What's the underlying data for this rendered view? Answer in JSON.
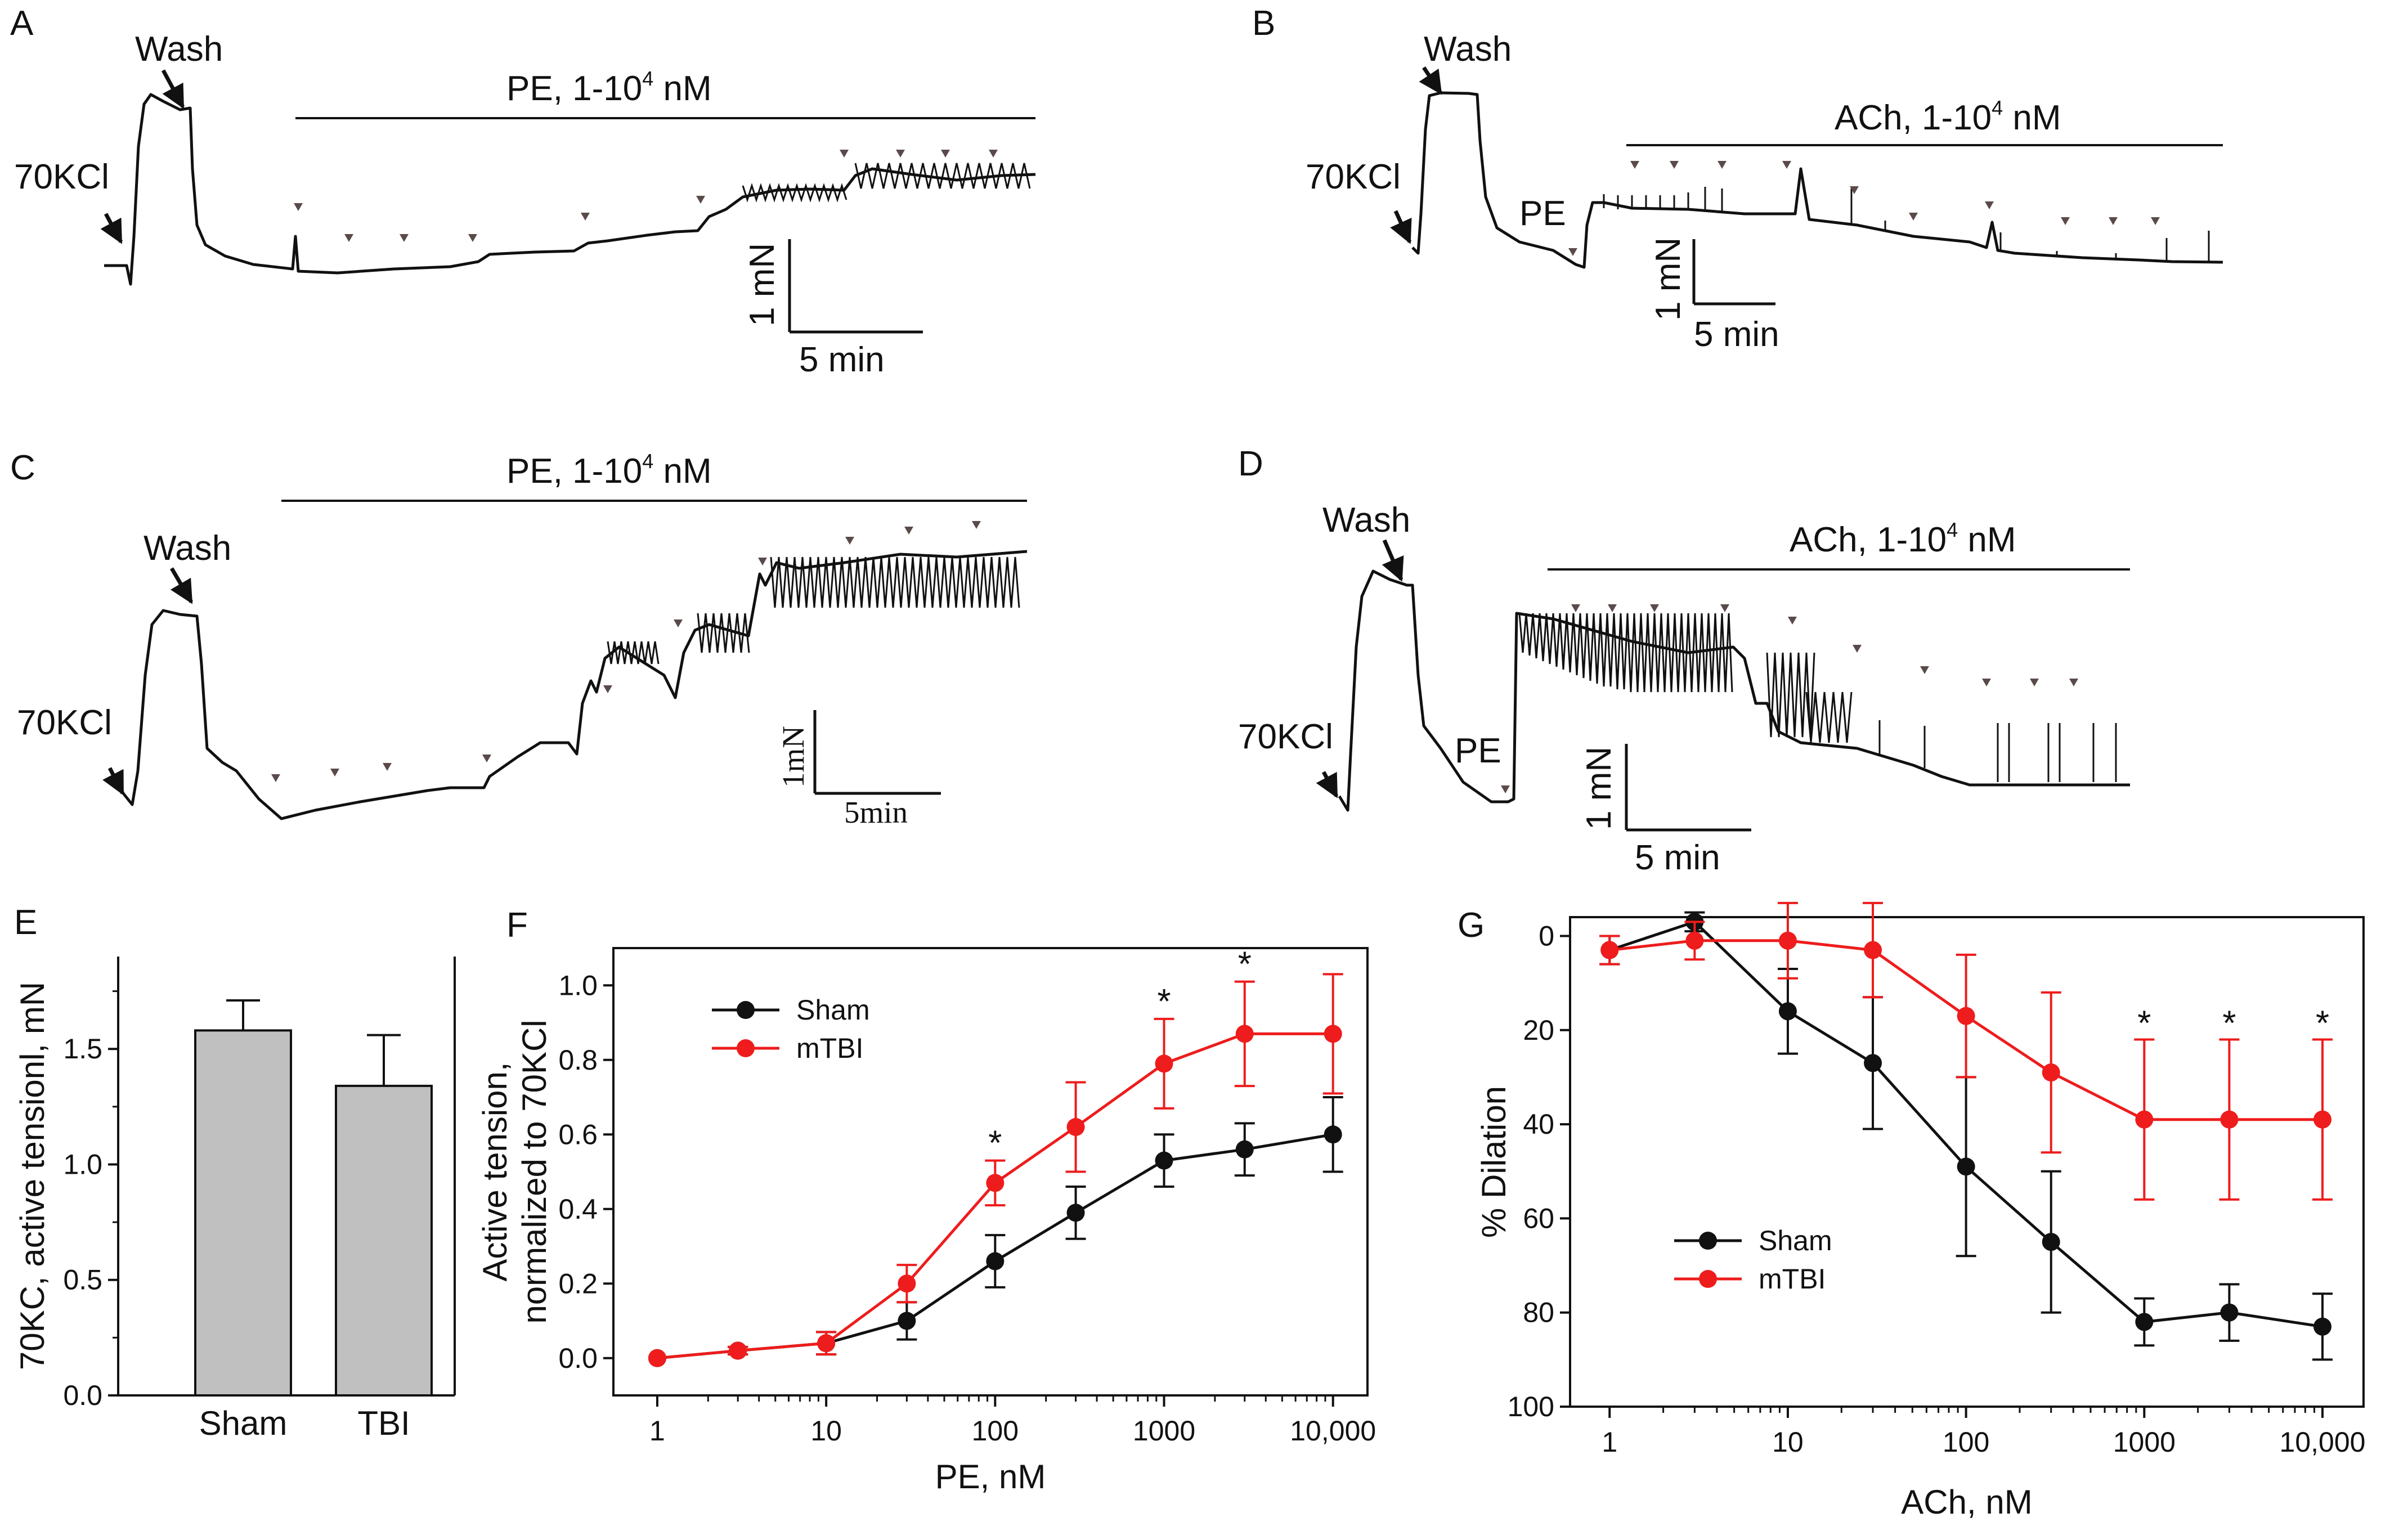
{
  "colors": {
    "sham": "#111111",
    "tbi": "#ee1c1c",
    "bar": "#c0c0c0",
    "trace": "#111111",
    "arrow": "#5a4a4a"
  },
  "panels": {
    "A": {
      "letter": "A",
      "wash": "Wash",
      "kcl": "70KCl",
      "drug": "PE, 1-10",
      "exp": "4",
      "unit": " nM",
      "scale_y": "1 mN",
      "scale_x": "5 min"
    },
    "B": {
      "letter": "B",
      "wash": "Wash",
      "kcl": "70KCl",
      "pe": "PE",
      "drug": "ACh, 1-10",
      "exp": "4",
      "unit": " nM",
      "scale_y": "1 mN",
      "scale_x": "5 min"
    },
    "C": {
      "letter": "C",
      "wash": "Wash",
      "kcl": "70KCl",
      "drug": "PE, 1-10",
      "exp": "4",
      "unit": " nM",
      "scale_y": "1mN",
      "scale_x": "5min"
    },
    "D": {
      "letter": "D",
      "wash": "Wash",
      "kcl": "70KCl",
      "pe": "PE",
      "drug": "ACh, 1-10",
      "exp": "4",
      "unit": " nM",
      "scale_y": "1 mN",
      "scale_x": "5 min"
    },
    "E": {
      "letter": "E"
    },
    "F": {
      "letter": "F"
    },
    "G": {
      "letter": "G"
    }
  },
  "chart_data": [
    {
      "id": "E",
      "type": "bar",
      "categories": [
        "Sham",
        "TBI"
      ],
      "values": [
        1.58,
        1.34
      ],
      "errors": [
        0.13,
        0.22
      ],
      "ylabel": "70KC, active tensionl, mN",
      "ylim": [
        0,
        1.9
      ],
      "yticks": [
        0.0,
        0.5,
        1.0,
        1.5
      ],
      "ytick_labels": [
        "0.0",
        "0.5",
        "1.0",
        "1.5"
      ]
    },
    {
      "id": "F",
      "type": "line",
      "xscale": "log",
      "xlabel": "PE, nM",
      "ylabel_lines": [
        "Active tension,",
        "normalized to 70KCl"
      ],
      "xlim": [
        0.55,
        16000
      ],
      "ylim": [
        -0.1,
        1.1
      ],
      "xticks": [
        1,
        10,
        100,
        1000,
        10000
      ],
      "xtick_labels": [
        "1",
        "10",
        "100",
        "1000",
        "10,000"
      ],
      "yticks": [
        0.0,
        0.2,
        0.4,
        0.6,
        0.8,
        1.0
      ],
      "ytick_labels": [
        "0.0",
        "0.2",
        "0.4",
        "0.6",
        "0.8",
        "1.0"
      ],
      "legend_position": "upper-left",
      "x": [
        1,
        3,
        10,
        30,
        100,
        300,
        1000,
        3000,
        10000
      ],
      "series": [
        {
          "name": "Sham",
          "values": [
            0.0,
            0.02,
            0.04,
            0.1,
            0.26,
            0.39,
            0.53,
            0.56,
            0.6
          ],
          "errors": [
            0.0,
            0.01,
            0.03,
            0.05,
            0.07,
            0.07,
            0.07,
            0.07,
            0.1
          ]
        },
        {
          "name": "mTBI",
          "values": [
            0.0,
            0.02,
            0.04,
            0.2,
            0.47,
            0.62,
            0.79,
            0.87,
            0.87
          ],
          "errors": [
            0.0,
            0.01,
            0.03,
            0.05,
            0.06,
            0.12,
            0.12,
            0.14,
            0.16
          ]
        }
      ],
      "significance": [
        100,
        1000,
        3000
      ],
      "significance_label": "*"
    },
    {
      "id": "G",
      "type": "line",
      "xscale": "log",
      "xlabel": "ACh, nM",
      "ylabel": "% Dilation",
      "xlim": [
        0.6,
        17000
      ],
      "ylim": [
        100,
        -4
      ],
      "y_inverted": true,
      "xticks": [
        1,
        10,
        100,
        1000,
        10000
      ],
      "xtick_labels": [
        "1",
        "10",
        "100",
        "1000",
        "10,000"
      ],
      "yticks": [
        0,
        20,
        40,
        60,
        80,
        100
      ],
      "ytick_labels": [
        "0",
        "20",
        "40",
        "60",
        "80",
        "100"
      ],
      "legend_position": "lower-left",
      "x": [
        1,
        3,
        10,
        30,
        100,
        300,
        1000,
        3000,
        10000
      ],
      "series": [
        {
          "name": "Sham",
          "values": [
            3,
            -3,
            16,
            27,
            49,
            65,
            82,
            80,
            83
          ],
          "errors": [
            3,
            2,
            9,
            14,
            19,
            15,
            5,
            6,
            7
          ]
        },
        {
          "name": "mTBI",
          "values": [
            3,
            1,
            1,
            3,
            17,
            29,
            39,
            39,
            39
          ],
          "errors": [
            3,
            4,
            8,
            10,
            13,
            17,
            17,
            17,
            17
          ]
        }
      ],
      "significance": [
        1000,
        3000,
        10000
      ],
      "significance_label": "*"
    }
  ]
}
